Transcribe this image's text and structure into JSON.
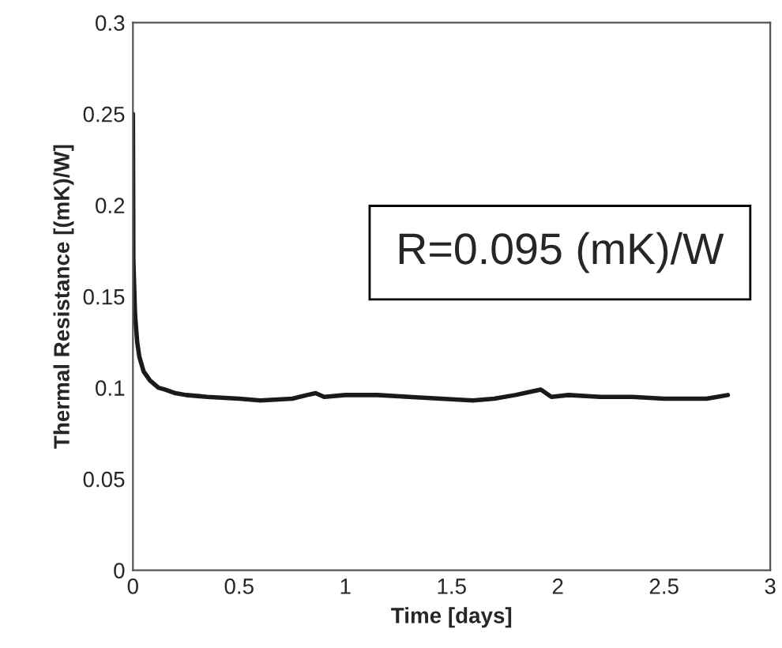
{
  "chart_data": {
    "type": "line",
    "xlabel": "Time [days]",
    "ylabel": "Thermal Resistance [(mK)/W]",
    "x": [
      0,
      0.002,
      0.01,
      0.02,
      0.03,
      0.05,
      0.08,
      0.12,
      0.15,
      0.2,
      0.25,
      0.35,
      0.5,
      0.6,
      0.75,
      0.82,
      0.86,
      0.9,
      1.0,
      1.15,
      1.3,
      1.45,
      1.6,
      1.7,
      1.8,
      1.88,
      1.92,
      1.97,
      2.05,
      2.2,
      2.35,
      2.5,
      2.6,
      2.7,
      2.75,
      2.8
    ],
    "series": [
      {
        "color": "#1a1a1a",
        "values": [
          0.25,
          0.17,
          0.14,
          0.125,
          0.117,
          0.109,
          0.104,
          0.1,
          0.099,
          0.097,
          0.096,
          0.095,
          0.094,
          0.093,
          0.094,
          0.096,
          0.097,
          0.095,
          0.096,
          0.096,
          0.095,
          0.094,
          0.093,
          0.094,
          0.096,
          0.098,
          0.099,
          0.095,
          0.096,
          0.095,
          0.095,
          0.094,
          0.094,
          0.094,
          0.095,
          0.096
        ]
      }
    ],
    "xlim": [
      0,
      3
    ],
    "xticks": [
      0,
      0.5,
      1,
      1.5,
      2,
      2.5,
      3
    ],
    "ylim": [
      0,
      0.3
    ],
    "yticks": [
      0,
      0.05,
      0.1,
      0.15,
      0.2,
      0.25,
      0.3
    ],
    "grid": false,
    "legend": false,
    "marker": "none",
    "line_style": "solid",
    "annotations": [
      "R=0.095 (mK)/W"
    ]
  }
}
